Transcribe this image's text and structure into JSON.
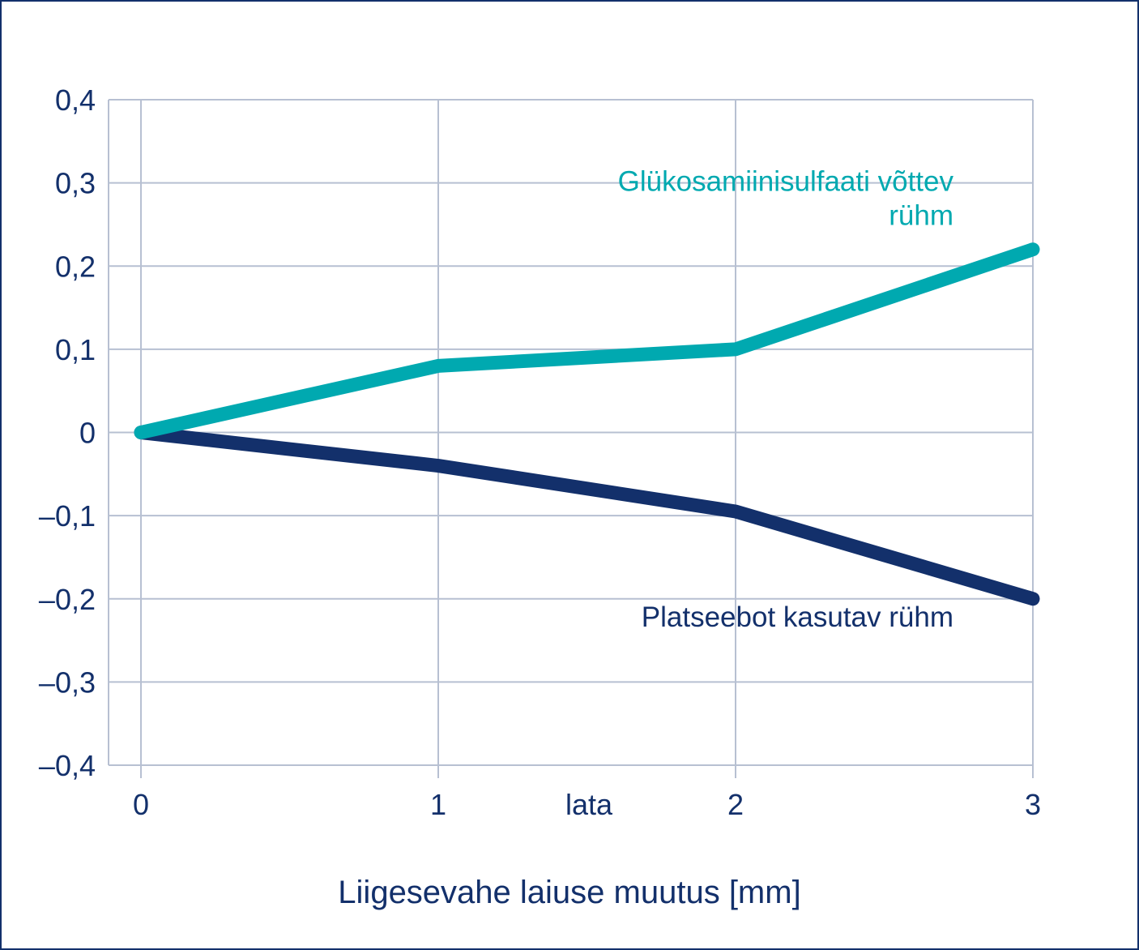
{
  "chart_data": {
    "type": "line",
    "title": "",
    "xlabel": "Liigesevahe laiuse muutus [mm]",
    "x_unit_label": "lata",
    "ylabel": "",
    "x": [
      0,
      1,
      2,
      3
    ],
    "x_tick_labels": [
      "0",
      "1",
      "2",
      "3"
    ],
    "xlim": [
      0,
      3
    ],
    "ylim": [
      -0.4,
      0.4
    ],
    "y_ticks": [
      0.4,
      0.3,
      0.2,
      0.1,
      0,
      -0.1,
      -0.2,
      -0.3,
      -0.4
    ],
    "y_tick_labels": [
      "0,4",
      "0,3",
      "0,2",
      "0,1",
      "0",
      "–0,1",
      "–0,2",
      "–0,3",
      "–0,4"
    ],
    "grid": true,
    "series": [
      {
        "name": "Glükosamiinisulfaati võttev rühm",
        "label_lines": [
          "Glükosamiinisulfaati võttev",
          "rühm"
        ],
        "color": "#00a9b0",
        "values": [
          0,
          0.08,
          0.1,
          0.22
        ]
      },
      {
        "name": "Platseebot kasutav rühm",
        "label_lines": [
          "Platseebot kasutav rühm"
        ],
        "color": "#13306b",
        "values": [
          0,
          -0.04,
          -0.095,
          -0.2
        ]
      }
    ]
  }
}
